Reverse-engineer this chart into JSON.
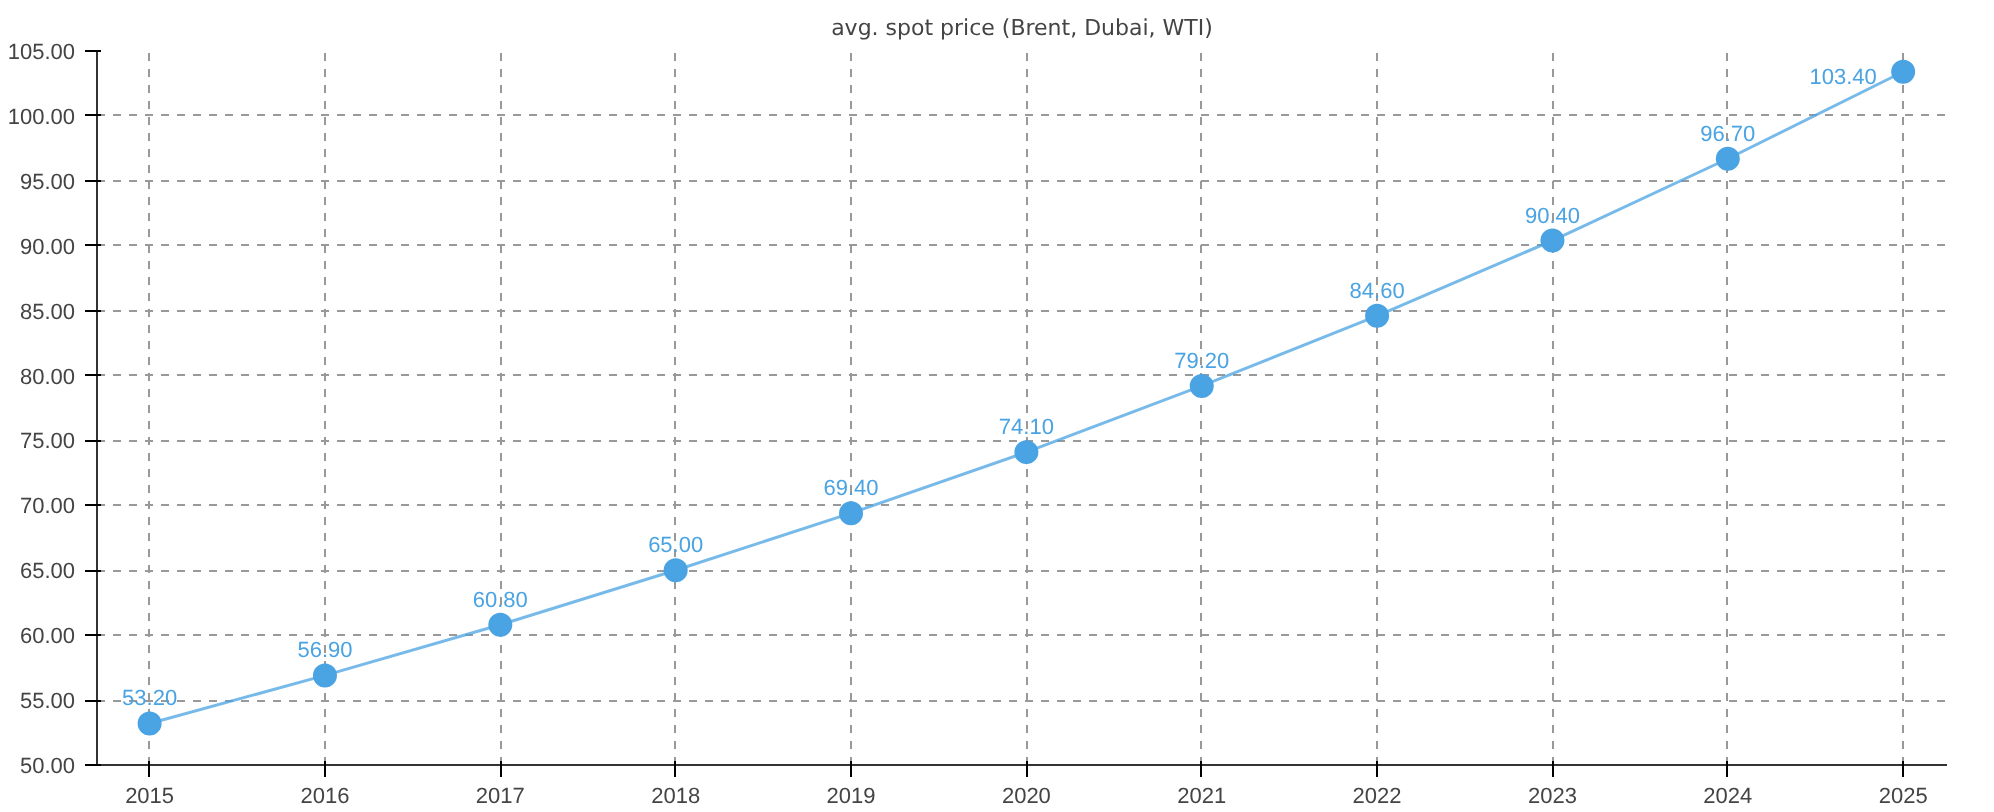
{
  "chart_data": {
    "type": "line",
    "title": "avg. spot price (Brent, Dubai, WTI)",
    "categories": [
      "2015",
      "2016",
      "2017",
      "2018",
      "2019",
      "2020",
      "2021",
      "2022",
      "2023",
      "2024",
      "2025"
    ],
    "series": [
      {
        "color": "#4aa3e2",
        "values": [
          53.2,
          56.9,
          60.8,
          65.0,
          69.4,
          74.1,
          79.2,
          84.6,
          90.4,
          96.7,
          103.4
        ],
        "value_labels": [
          "53.20",
          "56.90",
          "60.80",
          "65.00",
          "69.40",
          "74.10",
          "79.20",
          "84.60",
          "90.40",
          "96.70",
          "103.40"
        ]
      }
    ],
    "ylim": [
      50,
      105
    ],
    "yticks": [
      {
        "value": 50,
        "label": "50.00"
      },
      {
        "value": 55,
        "label": "55.00"
      },
      {
        "value": 60,
        "label": "60.00"
      },
      {
        "value": 65,
        "label": "65.00"
      },
      {
        "value": 70,
        "label": "70.00"
      },
      {
        "value": 75,
        "label": "75.00"
      },
      {
        "value": 80,
        "label": "80.00"
      },
      {
        "value": 85,
        "label": "85.00"
      },
      {
        "value": 90,
        "label": "90.00"
      },
      {
        "value": 95,
        "label": "95.00"
      },
      {
        "value": 100,
        "label": "100.00"
      },
      {
        "value": 105,
        "label": "105.00"
      }
    ],
    "grid": true,
    "marker": "circle",
    "line_style": "solid"
  }
}
